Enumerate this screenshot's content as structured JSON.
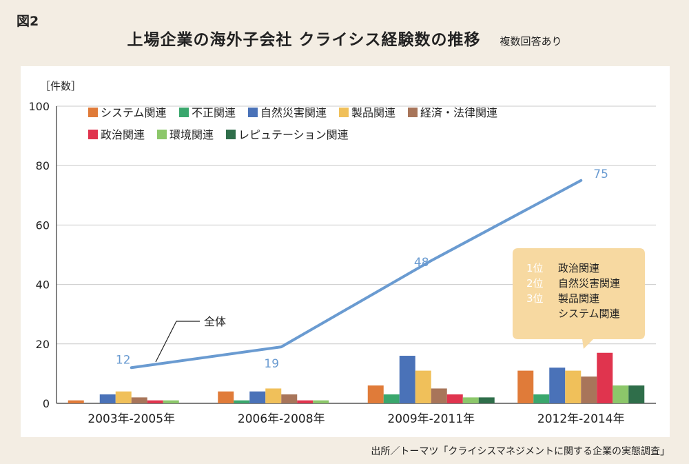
{
  "figure_label": "図2",
  "title": "上場企業の海外子会社 クライシス経験数の推移",
  "subtitle_note": "複数回答あり",
  "source": "出所／トーマツ「クライシスマネジメントに関する企業の実態調査」",
  "colors": {
    "page_bg": "#f3ede3",
    "panel_bg": "#ffffff",
    "line": "#6a9bd1",
    "callout": "#f7d9a1"
  },
  "chart_data": {
    "type": "bar",
    "ylabel": "［件数］",
    "ylim": [
      0,
      100
    ],
    "yticks": [
      0,
      20,
      40,
      60,
      80,
      100
    ],
    "grid": true,
    "legend_position": "top-left",
    "categories": [
      "2003年-2005年",
      "2006年-2008年",
      "2009年-2011年",
      "2012年-2014年"
    ],
    "series": [
      {
        "name": "システム関連",
        "color": "#e07b39",
        "values": [
          1,
          4,
          6,
          11
        ]
      },
      {
        "name": "不正関連",
        "color": "#3aa76d",
        "values": [
          0,
          1,
          3,
          3
        ]
      },
      {
        "name": "自然災害関連",
        "color": "#4a72b8",
        "values": [
          3,
          4,
          16,
          12
        ]
      },
      {
        "name": "製品関連",
        "color": "#f0c05a",
        "values": [
          4,
          5,
          11,
          11
        ]
      },
      {
        "name": "経済・法律関連",
        "color": "#a8755a",
        "values": [
          2,
          3,
          5,
          9
        ]
      },
      {
        "name": "政治関連",
        "color": "#e0344e",
        "values": [
          1,
          1,
          3,
          17
        ]
      },
      {
        "name": "環境関連",
        "color": "#8cc76a",
        "values": [
          1,
          1,
          2,
          6
        ]
      },
      {
        "name": "レピュテーション関連",
        "color": "#2f6e4a",
        "values": [
          0,
          0,
          2,
          6
        ]
      }
    ],
    "line_series": {
      "name": "全体",
      "color": "#6a9bd1",
      "values": [
        12,
        19,
        48,
        75
      ]
    },
    "callout": {
      "lines": [
        {
          "rank": "1位",
          "label": "政治関連"
        },
        {
          "rank": "2位",
          "label": "自然災害関連"
        },
        {
          "rank": "3位",
          "label": "製品関連"
        },
        {
          "rank": "",
          "label": "システム関連"
        }
      ]
    }
  }
}
